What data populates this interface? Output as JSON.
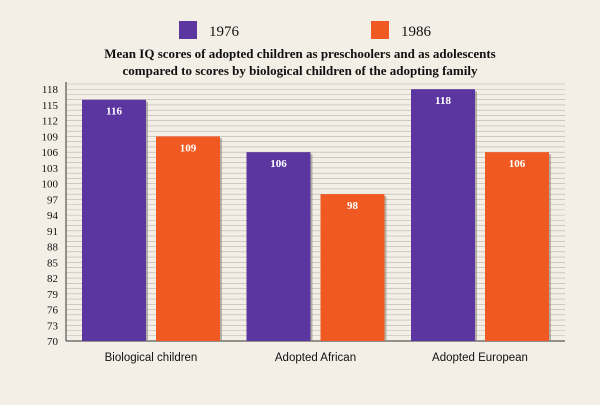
{
  "chart_data": {
    "type": "bar",
    "title": [
      "Mean IQ scores of adopted children as preschoolers and as adolescents",
      "compared to scores by biological children of the adopting family"
    ],
    "categories": [
      "Biological children",
      "Adopted African",
      "Adopted European"
    ],
    "series": [
      {
        "name": "1976",
        "color": "#5b36a1",
        "values": [
          116,
          106,
          118
        ]
      },
      {
        "name": "1986",
        "color": "#f05a22",
        "values": [
          109,
          98,
          106
        ]
      }
    ],
    "data_labels": [
      [
        "116",
        "106",
        "118"
      ],
      [
        "109",
        "98",
        "106"
      ]
    ],
    "ylim": [
      70,
      119
    ],
    "yticks": [
      70,
      73,
      76,
      79,
      82,
      85,
      88,
      91,
      94,
      97,
      100,
      103,
      106,
      109,
      112,
      115,
      118
    ],
    "grid": true,
    "legend_position": "top",
    "xlabel": "",
    "ylabel": ""
  }
}
